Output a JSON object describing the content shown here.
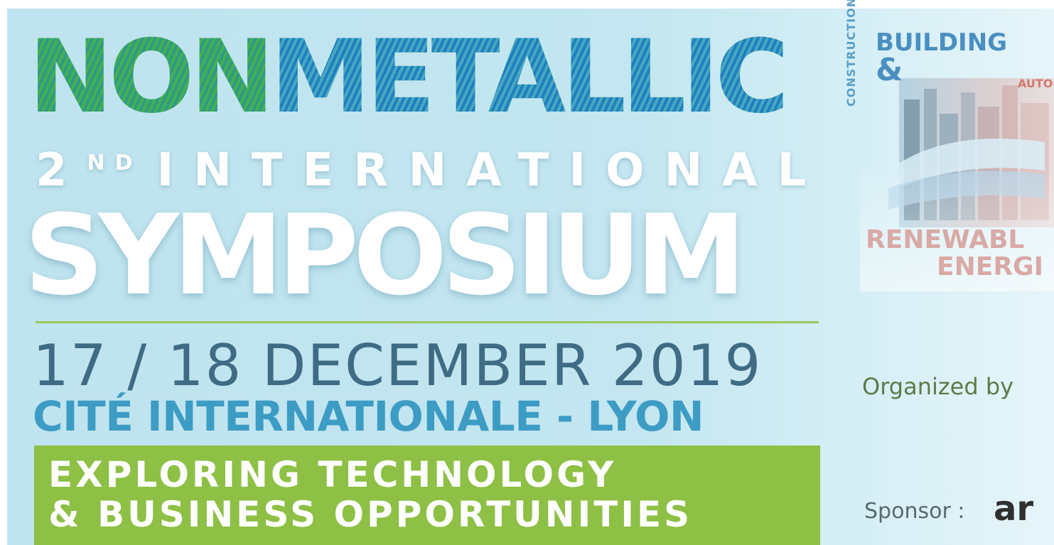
{
  "title": {
    "word1": "NON",
    "word2": "METALLIC"
  },
  "edition": {
    "number": "2",
    "suffix": "ND",
    "word": "INTERNATIONAL"
  },
  "event_type": "SYMPOSIUM",
  "dates": "17 / 18 DECEMBER 2019",
  "venue": "CITÉ INTERNATIONALE - LYON",
  "tagline": {
    "line1": "EXPLORING TECHNOLOGY",
    "line2": "& BUSINESS OPPORTUNITIES"
  },
  "right_panel": {
    "vertical_label": "CONSTRUCTION",
    "building": "BUILDING",
    "ampersand": "&",
    "automotive": "AUTOM",
    "renewable_line1": "RENEWABL",
    "renewable_line2": "ENERGI",
    "organized_label": "Organized by",
    "sponsor_label": "Sponsor :",
    "sponsor_logo": "ar"
  },
  "colors": {
    "background": "#c3e6f0",
    "green_accent": "#8dc044",
    "date_text": "#3f6c84",
    "venue_text": "#3d9cc4"
  }
}
